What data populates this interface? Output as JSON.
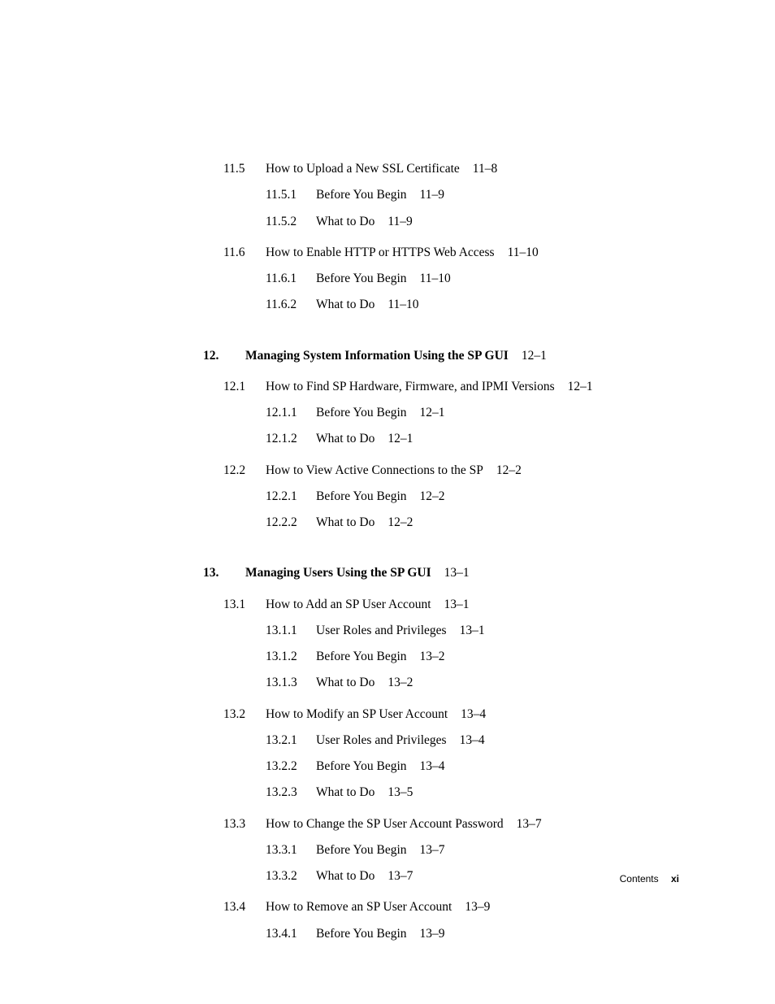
{
  "typography": {
    "body_font": "Palatino, 'Palatino Linotype', 'Book Antiqua', Georgia, serif",
    "footer_font": "Helvetica, Arial, sans-serif",
    "body_size_pt": 11.5,
    "footer_size_pt": 9,
    "text_color": "#000000",
    "background_color": "#ffffff"
  },
  "entries": [
    {
      "level": "section",
      "num": "11.5",
      "title": "How to Upload a New SSL Certificate",
      "page": "11–8"
    },
    {
      "level": "subsection",
      "num": "11.5.1",
      "title": "Before You Begin",
      "page": "11–9"
    },
    {
      "level": "subsection",
      "num": "11.5.2",
      "title": "What to Do",
      "page": "11–9"
    },
    {
      "level": "groupgap"
    },
    {
      "level": "section",
      "num": "11.6",
      "title": "How to Enable HTTP or HTTPS Web Access",
      "page": "11–10"
    },
    {
      "level": "subsection",
      "num": "11.6.1",
      "title": "Before You Begin",
      "page": "11–10"
    },
    {
      "level": "subsection",
      "num": "11.6.2",
      "title": "What to Do",
      "page": "11–10"
    },
    {
      "level": "chaptergap"
    },
    {
      "level": "chapter",
      "num": "12.",
      "title": "Managing System Information Using the SP GUI",
      "page": "12–1"
    },
    {
      "level": "groupgap"
    },
    {
      "level": "section",
      "num": "12.1",
      "title": "How to Find SP Hardware, Firmware, and IPMI Versions",
      "page": "12–1"
    },
    {
      "level": "subsection",
      "num": "12.1.1",
      "title": "Before You Begin",
      "page": "12–1"
    },
    {
      "level": "subsection",
      "num": "12.1.2",
      "title": "What to Do",
      "page": "12–1"
    },
    {
      "level": "groupgap"
    },
    {
      "level": "section",
      "num": "12.2",
      "title": "How to View Active Connections to the SP",
      "page": "12–2"
    },
    {
      "level": "subsection",
      "num": "12.2.1",
      "title": "Before You Begin",
      "page": "12–2"
    },
    {
      "level": "subsection",
      "num": "12.2.2",
      "title": "What to Do",
      "page": "12–2"
    },
    {
      "level": "chaptergap"
    },
    {
      "level": "chapter",
      "num": "13.",
      "title": "Managing Users Using the SP GUI",
      "page": "13–1"
    },
    {
      "level": "groupgap"
    },
    {
      "level": "section",
      "num": "13.1",
      "title": "How to Add an SP User Account",
      "page": "13–1"
    },
    {
      "level": "subsection",
      "num": "13.1.1",
      "title": "User Roles and Privileges",
      "page": "13–1"
    },
    {
      "level": "subsection",
      "num": "13.1.2",
      "title": "Before You Begin",
      "page": "13–2"
    },
    {
      "level": "subsection",
      "num": "13.1.3",
      "title": "What to Do",
      "page": "13–2"
    },
    {
      "level": "groupgap"
    },
    {
      "level": "section",
      "num": "13.2",
      "title": "How to Modify an SP User Account",
      "page": "13–4"
    },
    {
      "level": "subsection",
      "num": "13.2.1",
      "title": "User Roles and Privileges",
      "page": "13–4"
    },
    {
      "level": "subsection",
      "num": "13.2.2",
      "title": "Before You Begin",
      "page": "13–4"
    },
    {
      "level": "subsection",
      "num": "13.2.3",
      "title": "What to Do",
      "page": "13–5"
    },
    {
      "level": "groupgap"
    },
    {
      "level": "section",
      "num": "13.3",
      "title": "How to Change the SP User Account Password",
      "page": "13–7"
    },
    {
      "level": "subsection",
      "num": "13.3.1",
      "title": "Before You Begin",
      "page": "13–7"
    },
    {
      "level": "subsection",
      "num": "13.3.2",
      "title": "What to Do",
      "page": "13–7"
    },
    {
      "level": "groupgap"
    },
    {
      "level": "section",
      "num": "13.4",
      "title": "How to Remove an SP User Account",
      "page": "13–9"
    },
    {
      "level": "subsection",
      "num": "13.4.1",
      "title": "Before You Begin",
      "page": "13–9"
    }
  ],
  "footer": {
    "label": "Contents",
    "page_number": "xi"
  }
}
